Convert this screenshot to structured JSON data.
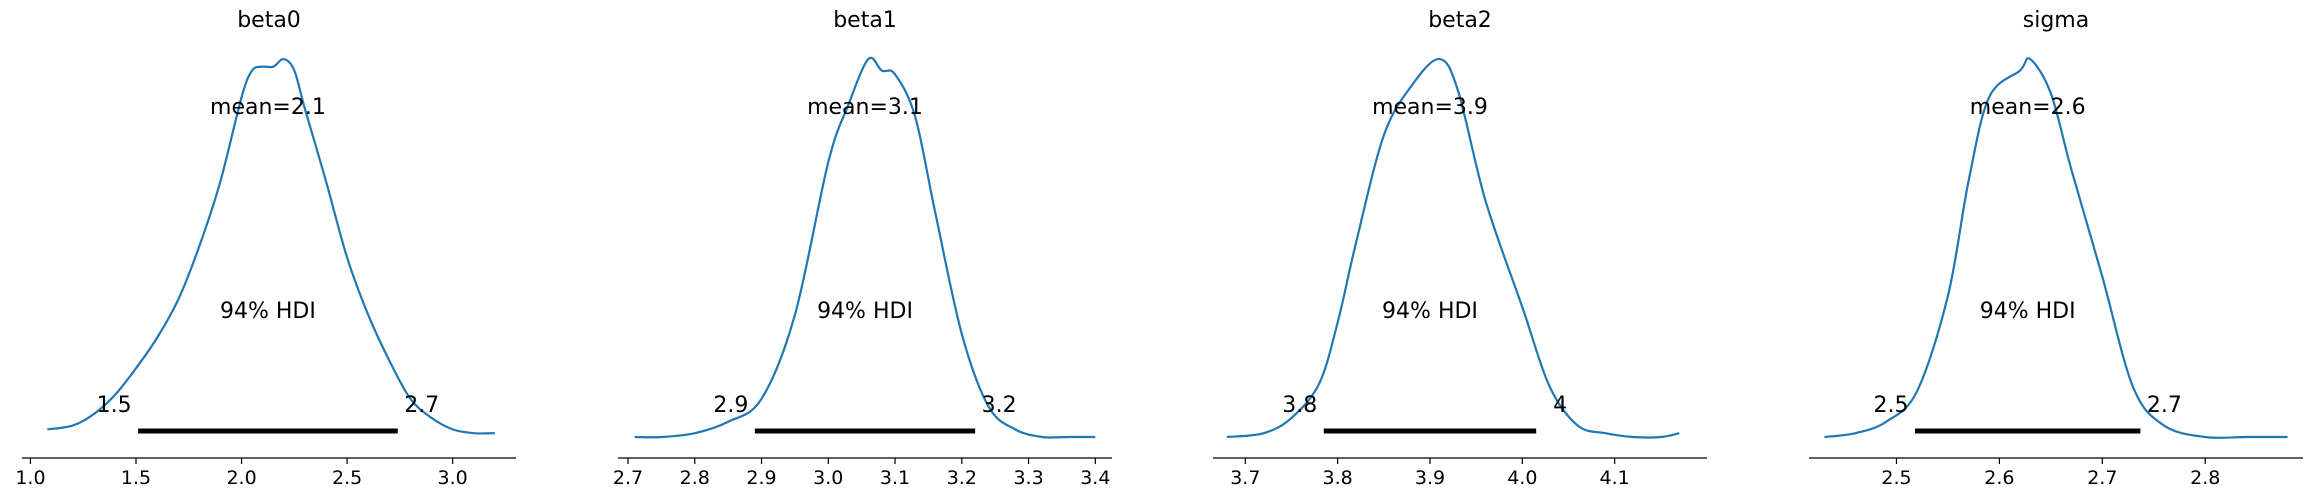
{
  "figure": {
    "background": "#ffffff",
    "curve_color": "#1f77b4",
    "hdi_bar_color": "#000000"
  },
  "chart_data": [
    {
      "type": "line",
      "title": "beta0",
      "mean_label": "mean=2.1",
      "hdi_label": "94% HDI",
      "hdi_low_label": "1.5",
      "hdi_high_label": "2.7",
      "hdi": [
        1.51,
        2.74
      ],
      "x_ticks": [
        1.0,
        1.5,
        2.0,
        2.5,
        3.0
      ],
      "x_tick_labels": [
        "1.0",
        "1.5",
        "2.0",
        "2.5",
        "3.0"
      ],
      "xlim": [
        0.96,
        3.3
      ],
      "ylim": [
        0,
        1.04
      ],
      "density": [
        [
          1.08,
          0.02
        ],
        [
          1.2,
          0.03
        ],
        [
          1.3,
          0.06
        ],
        [
          1.4,
          0.11
        ],
        [
          1.5,
          0.18
        ],
        [
          1.6,
          0.26
        ],
        [
          1.7,
          0.36
        ],
        [
          1.8,
          0.5
        ],
        [
          1.9,
          0.67
        ],
        [
          2.0,
          0.89
        ],
        [
          2.05,
          0.96
        ],
        [
          2.1,
          0.97
        ],
        [
          2.15,
          0.97
        ],
        [
          2.2,
          0.99
        ],
        [
          2.25,
          0.96
        ],
        [
          2.3,
          0.86
        ],
        [
          2.4,
          0.67
        ],
        [
          2.5,
          0.47
        ],
        [
          2.6,
          0.32
        ],
        [
          2.7,
          0.2
        ],
        [
          2.8,
          0.1
        ],
        [
          2.9,
          0.05
        ],
        [
          3.0,
          0.02
        ],
        [
          3.1,
          0.01
        ],
        [
          3.2,
          0.01
        ]
      ]
    },
    {
      "type": "line",
      "title": "beta1",
      "mean_label": "mean=3.1",
      "hdi_label": "94% HDI",
      "hdi_low_label": "2.9",
      "hdi_high_label": "3.2",
      "hdi": [
        2.89,
        3.22
      ],
      "x_ticks": [
        2.7,
        2.8,
        2.9,
        3.0,
        3.1,
        3.2,
        3.3,
        3.4
      ],
      "x_tick_labels": [
        "2.7",
        "2.8",
        "2.9",
        "3.0",
        "3.1",
        "3.2",
        "3.3",
        "3.4"
      ],
      "xlim": [
        2.685,
        3.425
      ],
      "ylim": [
        0,
        1.04
      ],
      "density": [
        [
          2.71,
          0.0
        ],
        [
          2.75,
          0.0
        ],
        [
          2.8,
          0.01
        ],
        [
          2.85,
          0.04
        ],
        [
          2.9,
          0.1
        ],
        [
          2.95,
          0.32
        ],
        [
          3.0,
          0.72
        ],
        [
          3.03,
          0.87
        ],
        [
          3.06,
          0.99
        ],
        [
          3.08,
          0.96
        ],
        [
          3.1,
          0.95
        ],
        [
          3.13,
          0.84
        ],
        [
          3.16,
          0.59
        ],
        [
          3.2,
          0.27
        ],
        [
          3.24,
          0.08
        ],
        [
          3.28,
          0.02
        ],
        [
          3.32,
          0.0
        ],
        [
          3.36,
          0.0
        ],
        [
          3.4,
          0.0
        ]
      ]
    },
    {
      "type": "line",
      "title": "beta2",
      "mean_label": "mean=3.9",
      "hdi_label": "94% HDI",
      "hdi_low_label": "3.8",
      "hdi_high_label": "4",
      "hdi": [
        3.785,
        4.015
      ],
      "x_ticks": [
        3.7,
        3.8,
        3.9,
        4.0,
        4.1
      ],
      "x_tick_labels": [
        "3.7",
        "3.8",
        "3.9",
        "4.0",
        "4.1"
      ],
      "xlim": [
        3.665,
        4.2
      ],
      "ylim": [
        0,
        1.04
      ],
      "density": [
        [
          3.68,
          0.0
        ],
        [
          3.72,
          0.01
        ],
        [
          3.75,
          0.05
        ],
        [
          3.78,
          0.14
        ],
        [
          3.8,
          0.3
        ],
        [
          3.82,
          0.51
        ],
        [
          3.85,
          0.79
        ],
        [
          3.88,
          0.92
        ],
        [
          3.91,
          0.99
        ],
        [
          3.93,
          0.91
        ],
        [
          3.96,
          0.62
        ],
        [
          4.0,
          0.34
        ],
        [
          4.03,
          0.13
        ],
        [
          4.06,
          0.03
        ],
        [
          4.09,
          0.01
        ],
        [
          4.12,
          0.0
        ],
        [
          4.15,
          0.0
        ],
        [
          4.17,
          0.01
        ]
      ]
    },
    {
      "type": "line",
      "title": "sigma",
      "mean_label": "mean=2.6",
      "hdi_label": "94% HDI",
      "hdi_low_label": "2.5",
      "hdi_high_label": "2.7",
      "hdi": [
        2.518,
        2.737
      ],
      "x_ticks": [
        2.5,
        2.6,
        2.7,
        2.8
      ],
      "x_tick_labels": [
        "2.5",
        "2.6",
        "2.7",
        "2.8"
      ],
      "xlim": [
        2.415,
        2.895
      ],
      "ylim": [
        0,
        1.04
      ],
      "density": [
        [
          2.43,
          0.0
        ],
        [
          2.46,
          0.01
        ],
        [
          2.49,
          0.04
        ],
        [
          2.52,
          0.12
        ],
        [
          2.55,
          0.37
        ],
        [
          2.57,
          0.67
        ],
        [
          2.59,
          0.89
        ],
        [
          2.62,
          0.96
        ],
        [
          2.63,
          0.99
        ],
        [
          2.65,
          0.9
        ],
        [
          2.67,
          0.7
        ],
        [
          2.7,
          0.42
        ],
        [
          2.73,
          0.13
        ],
        [
          2.76,
          0.03
        ],
        [
          2.8,
          0.0
        ],
        [
          2.84,
          0.0
        ],
        [
          2.88,
          0.0
        ]
      ]
    }
  ]
}
